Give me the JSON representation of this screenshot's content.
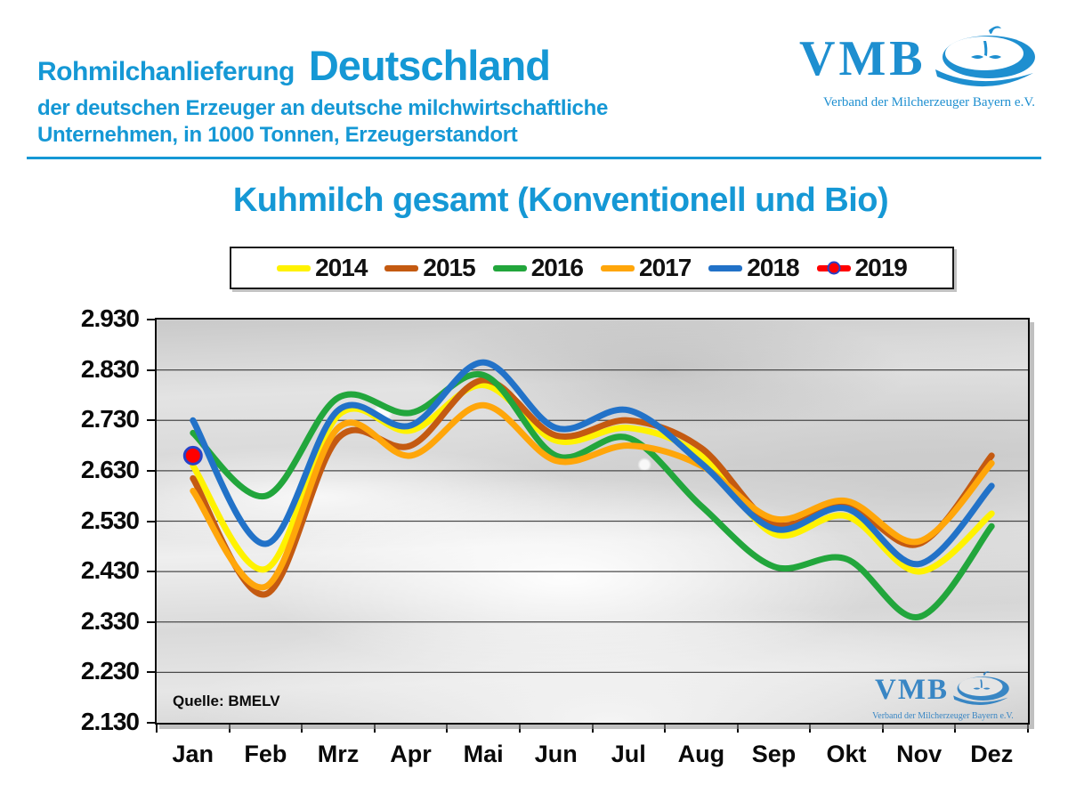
{
  "header": {
    "title_small": "Rohmilchanlieferung",
    "title_big": "Deutschland",
    "subtitle_line1": "der deutschen Erzeuger an deutsche milchwirtschaftliche",
    "subtitle_line2": "Unternehmen, in 1000 Tonnen, Erzeugerstandort",
    "accent_color": "#1598D5"
  },
  "logo": {
    "name": "VMB",
    "caption": "Verband der Milcherzeuger Bayern e.V.",
    "color": "#1E8FD0"
  },
  "chart_title": "Kuhmilch gesamt (Konventionell und Bio)",
  "source_label": "Quelle: BMELV",
  "chart_data": {
    "type": "line",
    "title": "Kuhmilch gesamt (Konventionell und Bio)",
    "unit": "1000 Tonnen",
    "categories": [
      "Jan",
      "Feb",
      "Mrz",
      "Apr",
      "Mai",
      "Jun",
      "Jul",
      "Aug",
      "Sep",
      "Okt",
      "Nov",
      "Dez"
    ],
    "y_tick_labels": [
      "2.930",
      "2.830",
      "2.730",
      "2.630",
      "2.530",
      "2.430",
      "2.330",
      "2.230",
      "2.130"
    ],
    "y_tick_values": [
      2930,
      2830,
      2730,
      2630,
      2530,
      2430,
      2330,
      2230,
      2130
    ],
    "ylim": [
      2130,
      2930
    ],
    "grid": true,
    "legend_position": "top",
    "series": [
      {
        "name": "2014",
        "color": "#FFF200",
        "values": [
          2640,
          2435,
          2740,
          2710,
          2800,
          2690,
          2715,
          2660,
          2505,
          2540,
          2430,
          2545
        ]
      },
      {
        "name": "2015",
        "color": "#C45A11",
        "values": [
          2615,
          2385,
          2695,
          2680,
          2810,
          2700,
          2730,
          2675,
          2525,
          2560,
          2485,
          2660
        ]
      },
      {
        "name": "2016",
        "color": "#22A63C",
        "values": [
          2705,
          2580,
          2775,
          2745,
          2820,
          2660,
          2695,
          2560,
          2440,
          2455,
          2340,
          2520
        ]
      },
      {
        "name": "2017",
        "color": "#FFA60A",
        "values": [
          2590,
          2400,
          2715,
          2660,
          2760,
          2650,
          2680,
          2640,
          2535,
          2570,
          2490,
          2645
        ]
      },
      {
        "name": "2018",
        "color": "#2272C8",
        "values": [
          2730,
          2485,
          2750,
          2720,
          2845,
          2715,
          2750,
          2645,
          2515,
          2555,
          2445,
          2600
        ]
      },
      {
        "name": "2019",
        "color": "#FF0000",
        "marker": "circle",
        "marker_outline": "#2642C8",
        "values": [
          2660,
          null,
          null,
          null,
          null,
          null,
          null,
          null,
          null,
          null,
          null,
          null
        ]
      }
    ]
  }
}
